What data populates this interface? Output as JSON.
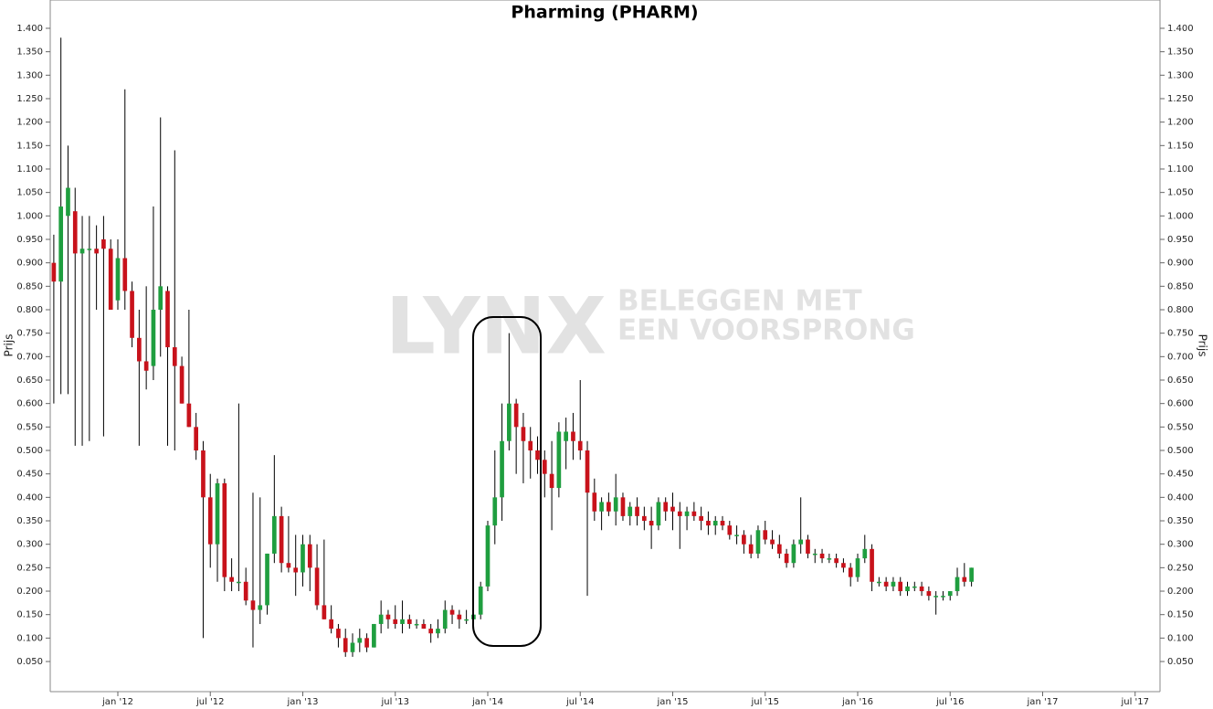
{
  "chart_data": {
    "type": "candlestick",
    "title": "Pharming (PHARM)",
    "ylabel": "Prijs",
    "y2label": "Prijs",
    "watermark": {
      "brand": "LYNX",
      "tagline": [
        "BELEGGEN MET",
        "EEN VOORSPRONG"
      ]
    },
    "up_color": "#1f9e3f",
    "down_color": "#c8121b",
    "categories": [
      null,
      null,
      null,
      null,
      null,
      null,
      null,
      null,
      null,
      "jan '12",
      null,
      null,
      null,
      null,
      null,
      null,
      null,
      null,
      null,
      null,
      null,
      null,
      "jul '12",
      null,
      null,
      null,
      null,
      null,
      null,
      null,
      null,
      null,
      null,
      null,
      null,
      "jan '13",
      null,
      null,
      null,
      null,
      null,
      null,
      null,
      null,
      null,
      null,
      null,
      null,
      "jul '13",
      null,
      null,
      null,
      null,
      null,
      null,
      null,
      null,
      null,
      null,
      null,
      null,
      "jan '14",
      null,
      null,
      null,
      null,
      null,
      null,
      null,
      null,
      null,
      null,
      null,
      null,
      "jul '14",
      null,
      null,
      null,
      null,
      null,
      null,
      null,
      null,
      null,
      null,
      null,
      null,
      "jan '15",
      null,
      null,
      null,
      null,
      null,
      null,
      null,
      null,
      null,
      null,
      null,
      null,
      "jul '15",
      null,
      null,
      null,
      null,
      null,
      null,
      null,
      null,
      null,
      null,
      null,
      null,
      "jan '16",
      null,
      null,
      null,
      null,
      null,
      null,
      null,
      null,
      null,
      null,
      null,
      null,
      "jul '16",
      null,
      null,
      null,
      null,
      null,
      null,
      null,
      null,
      null,
      null,
      null,
      null,
      "jan '17",
      null,
      null,
      null,
      null,
      null,
      null,
      null,
      null,
      null,
      null,
      null,
      null,
      "jul '17",
      null,
      null,
      null
    ],
    "open": [
      0.9,
      0.86,
      1,
      1.01,
      0.92,
      0.93,
      0.93,
      0.95,
      0.93,
      0.82,
      0.91,
      0.84,
      0.74,
      0.69,
      0.68,
      0.8,
      0.84,
      0.72,
      0.68,
      0.6,
      0.55,
      0.5,
      0.4,
      0.3,
      0.43,
      0.23,
      0.22,
      0.22,
      0.18,
      0.16,
      0.17,
      0.28,
      0.36,
      0.26,
      0.25,
      0.24,
      0.3,
      0.25,
      0.17,
      0.14,
      0.12,
      0.1,
      0.07,
      0.09,
      0.1,
      0.08,
      0.13,
      0.15,
      0.14,
      0.13,
      0.14,
      0.13,
      0.13,
      0.12,
      0.11,
      0.12,
      0.16,
      0.15,
      0.14,
      0.14,
      0.15,
      0.21,
      0.34,
      0.4,
      0.52,
      0.6,
      0.55,
      0.52,
      0.5,
      0.48,
      0.45,
      0.42,
      0.52,
      0.54,
      0.52,
      0.5,
      0.41,
      0.37,
      0.39,
      0.37,
      0.4,
      0.36,
      0.38,
      0.36,
      0.35,
      0.34,
      0.39,
      0.38,
      0.37,
      0.36,
      0.37,
      0.36,
      0.35,
      0.34,
      0.35,
      0.34,
      0.32,
      0.32,
      0.3,
      0.28,
      0.33,
      0.31,
      0.3,
      0.28,
      0.26,
      0.3,
      0.31,
      0.28,
      0.28,
      0.27,
      0.27,
      0.26,
      0.25,
      0.23,
      0.27,
      0.29,
      0.22,
      0.22,
      0.21,
      0.22,
      0.2,
      0.21,
      0.21,
      0.2,
      0.19,
      0.19,
      0.19,
      0.2,
      0.23,
      0.22,
      null,
      null,
      null,
      null,
      null,
      null,
      null,
      null,
      null,
      null,
      null,
      null,
      null,
      null,
      null,
      null,
      null,
      null,
      null,
      null,
      null,
      null,
      null,
      null,
      null,
      null
    ],
    "high": [
      0.96,
      1.38,
      1.15,
      1.06,
      1,
      1,
      0.98,
      1,
      0.95,
      0.95,
      1.27,
      0.86,
      0.8,
      0.85,
      1.02,
      1.21,
      0.85,
      1.14,
      0.7,
      0.8,
      0.58,
      0.52,
      0.45,
      0.44,
      0.44,
      0.27,
      0.6,
      0.25,
      0.41,
      0.4,
      0.28,
      0.49,
      0.38,
      0.36,
      0.32,
      0.32,
      0.32,
      0.3,
      0.31,
      0.17,
      0.13,
      0.12,
      0.11,
      0.12,
      0.11,
      0.13,
      0.18,
      0.16,
      0.17,
      0.18,
      0.15,
      0.14,
      0.14,
      0.13,
      0.14,
      0.18,
      0.17,
      0.16,
      0.16,
      0.17,
      0.22,
      0.35,
      0.5,
      0.6,
      0.75,
      0.61,
      0.58,
      0.55,
      0.53,
      0.5,
      0.52,
      0.56,
      0.57,
      0.58,
      0.65,
      0.52,
      0.44,
      0.4,
      0.41,
      0.45,
      0.41,
      0.39,
      0.4,
      0.38,
      0.38,
      0.4,
      0.4,
      0.41,
      0.39,
      0.38,
      0.39,
      0.38,
      0.37,
      0.36,
      0.36,
      0.35,
      0.34,
      0.33,
      0.32,
      0.34,
      0.35,
      0.33,
      0.32,
      0.29,
      0.31,
      0.4,
      0.32,
      0.29,
      0.29,
      0.28,
      0.28,
      0.27,
      0.26,
      0.28,
      0.32,
      0.3,
      0.23,
      0.23,
      0.23,
      0.23,
      0.22,
      0.22,
      0.22,
      0.21,
      0.2,
      0.2,
      0.2,
      0.25,
      0.26,
      0.25,
      null,
      null,
      null,
      null,
      null,
      null,
      null,
      null,
      null,
      null,
      null,
      null,
      null,
      null,
      null,
      null,
      null,
      null,
      null,
      null,
      null,
      null,
      null,
      null,
      null,
      null
    ],
    "low": [
      0.6,
      0.62,
      0.62,
      0.51,
      0.51,
      0.52,
      0.8,
      0.53,
      0.8,
      0.8,
      0.8,
      0.72,
      0.51,
      0.63,
      0.65,
      0.7,
      0.51,
      0.5,
      0.6,
      0.55,
      0.48,
      0.1,
      0.25,
      0.22,
      0.2,
      0.2,
      0.2,
      0.17,
      0.08,
      0.13,
      0.15,
      0.26,
      0.24,
      0.24,
      0.19,
      0.21,
      0.2,
      0.16,
      0.14,
      0.11,
      0.08,
      0.06,
      0.06,
      0.07,
      0.07,
      0.08,
      0.11,
      0.12,
      0.12,
      0.11,
      0.12,
      0.12,
      0.12,
      0.09,
      0.1,
      0.11,
      0.13,
      0.12,
      0.13,
      0.13,
      0.14,
      0.2,
      0.3,
      0.35,
      0.5,
      0.45,
      0.43,
      0.44,
      0.45,
      0.4,
      0.33,
      0.4,
      0.46,
      0.48,
      0.48,
      0.19,
      0.35,
      0.33,
      0.36,
      0.34,
      0.35,
      0.34,
      0.34,
      0.33,
      0.29,
      0.33,
      0.35,
      0.33,
      0.29,
      0.33,
      0.35,
      0.33,
      0.32,
      0.32,
      0.33,
      0.31,
      0.3,
      0.28,
      0.27,
      0.27,
      0.3,
      0.29,
      0.27,
      0.25,
      0.25,
      0.28,
      0.27,
      0.26,
      0.26,
      0.26,
      0.25,
      0.24,
      0.21,
      0.22,
      0.26,
      0.2,
      0.21,
      0.2,
      0.2,
      0.19,
      0.19,
      0.2,
      0.19,
      0.18,
      0.15,
      0.18,
      0.18,
      0.19,
      0.21,
      0.21,
      null,
      null,
      null,
      null,
      null,
      null,
      null,
      null,
      null,
      null,
      null,
      null,
      null,
      null,
      null,
      null,
      null,
      null,
      null,
      null,
      null,
      null,
      null,
      null,
      null,
      null
    ],
    "close": [
      0.86,
      1.02,
      1.06,
      0.92,
      0.93,
      0.93,
      0.92,
      0.93,
      0.8,
      0.91,
      0.84,
      0.74,
      0.69,
      0.67,
      0.8,
      0.85,
      0.72,
      0.68,
      0.6,
      0.55,
      0.5,
      0.4,
      0.3,
      0.43,
      0.23,
      0.22,
      0.22,
      0.18,
      0.16,
      0.17,
      0.28,
      0.36,
      0.26,
      0.25,
      0.24,
      0.3,
      0.25,
      0.17,
      0.14,
      0.12,
      0.1,
      0.07,
      0.09,
      0.1,
      0.08,
      0.13,
      0.15,
      0.14,
      0.13,
      0.14,
      0.13,
      0.13,
      0.12,
      0.11,
      0.12,
      0.16,
      0.15,
      0.14,
      0.14,
      0.15,
      0.21,
      0.34,
      0.4,
      0.52,
      0.6,
      0.55,
      0.52,
      0.5,
      0.48,
      0.45,
      0.42,
      0.54,
      0.54,
      0.52,
      0.5,
      0.41,
      0.37,
      0.39,
      0.37,
      0.4,
      0.36,
      0.38,
      0.36,
      0.35,
      0.34,
      0.39,
      0.37,
      0.37,
      0.36,
      0.37,
      0.36,
      0.35,
      0.34,
      0.35,
      0.34,
      0.32,
      0.32,
      0.3,
      0.28,
      0.33,
      0.31,
      0.3,
      0.28,
      0.26,
      0.3,
      0.31,
      0.28,
      0.28,
      0.27,
      0.27,
      0.26,
      0.25,
      0.23,
      0.27,
      0.29,
      0.22,
      0.22,
      0.21,
      0.22,
      0.2,
      0.21,
      0.21,
      0.2,
      0.19,
      0.19,
      0.19,
      0.2,
      0.23,
      0.22,
      0.25,
      null,
      null,
      null,
      null,
      null,
      null,
      null,
      null,
      null,
      null,
      null,
      null,
      null,
      null,
      null,
      null,
      null,
      null,
      null,
      null,
      null,
      null,
      null,
      null,
      null,
      null
    ],
    "ylim": [
      0,
      1.45
    ],
    "yticks": [
      {
        "value": 0.05,
        "label": "0.050"
      },
      {
        "value": 0.1,
        "label": "0.100"
      },
      {
        "value": 0.15,
        "label": "0.150"
      },
      {
        "value": 0.2,
        "label": "0.200"
      },
      {
        "value": 0.25,
        "label": "0.250"
      },
      {
        "value": 0.3,
        "label": "0.300"
      },
      {
        "value": 0.35,
        "label": "0.350"
      },
      {
        "value": 0.4,
        "label": "0.400"
      },
      {
        "value": 0.45,
        "label": "0.450"
      },
      {
        "value": 0.5,
        "label": "0.500"
      },
      {
        "value": 0.55,
        "label": "0.550"
      },
      {
        "value": 0.6,
        "label": "0.600"
      },
      {
        "value": 0.65,
        "label": "0.650"
      },
      {
        "value": 0.7,
        "label": "0.700"
      },
      {
        "value": 0.75,
        "label": "0.750"
      },
      {
        "value": 0.8,
        "label": "0.800"
      },
      {
        "value": 0.85,
        "label": "0.850"
      },
      {
        "value": 0.9,
        "label": "0.900"
      },
      {
        "value": 0.95,
        "label": "0.950"
      },
      {
        "value": 1,
        "label": "1.000"
      },
      {
        "value": 1.05,
        "label": "1.050"
      },
      {
        "value": 1.1,
        "label": "1.100"
      },
      {
        "value": 1.15,
        "label": "1.150"
      },
      {
        "value": 1.2,
        "label": "1.200"
      },
      {
        "value": 1.25,
        "label": "1.250"
      },
      {
        "value": 1.3,
        "label": "1.300"
      },
      {
        "value": 1.35,
        "label": "1.350"
      },
      {
        "value": 1.4,
        "label": "1.400"
      }
    ],
    "grid": false
  }
}
